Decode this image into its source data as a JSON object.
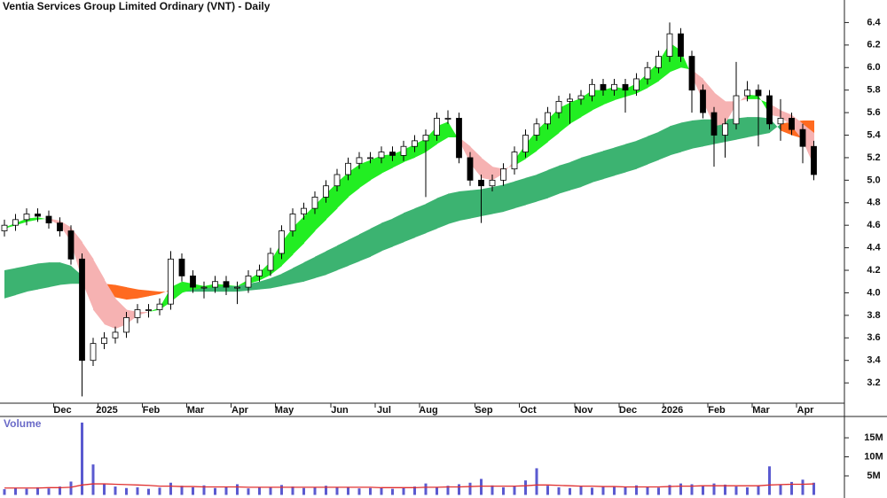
{
  "chart_data": [
    {
      "type": "candlestick",
      "title": "Ventia Services Group Limited Ordinary (VNT) - Daily",
      "categories": [
        null,
        null,
        null,
        null,
        null,
        "Dec",
        null,
        null,
        null,
        "2025",
        null,
        null,
        null,
        "Feb",
        null,
        null,
        null,
        "Mar",
        null,
        null,
        null,
        "Apr",
        null,
        null,
        null,
        "May",
        null,
        null,
        null,
        null,
        "Jun",
        null,
        null,
        null,
        "Jul",
        null,
        null,
        null,
        "Aug",
        null,
        null,
        null,
        null,
        "Sep",
        null,
        null,
        null,
        "Oct",
        null,
        null,
        null,
        null,
        "Nov",
        null,
        null,
        null,
        "Dec",
        null,
        null,
        null,
        "2026",
        null,
        null,
        null,
        "Feb",
        null,
        null,
        null,
        "Mar",
        null,
        null,
        null,
        "Apr",
        null
      ],
      "open": [
        4.55,
        4.6,
        4.65,
        4.7,
        4.68,
        4.62,
        4.55,
        4.3,
        3.4,
        3.55,
        3.6,
        3.65,
        3.78,
        3.85,
        3.85,
        3.9,
        4.3,
        4.15,
        4.05,
        4.05,
        4.1,
        4.05,
        4.05,
        4.15,
        4.2,
        4.35,
        4.55,
        4.7,
        4.75,
        4.85,
        4.95,
        5.05,
        5.15,
        5.2,
        5.2,
        5.25,
        5.22,
        5.3,
        5.35,
        5.4,
        5.55,
        5.55,
        5.2,
        5.0,
        4.95,
        5.0,
        5.1,
        5.25,
        5.4,
        5.5,
        5.6,
        5.7,
        5.72,
        5.75,
        5.85,
        5.8,
        5.85,
        5.8,
        5.9,
        6.0,
        6.1,
        6.3,
        6.1,
        5.8,
        5.6,
        5.4,
        5.5,
        5.75,
        5.8,
        5.75,
        5.5,
        5.55,
        5.45,
        5.3
      ],
      "high": [
        4.65,
        4.7,
        4.75,
        4.75,
        4.73,
        4.67,
        4.6,
        4.35,
        3.6,
        3.65,
        3.7,
        3.83,
        3.9,
        3.9,
        3.95,
        4.37,
        4.35,
        4.2,
        4.1,
        4.15,
        4.15,
        4.1,
        4.2,
        4.25,
        4.4,
        4.6,
        4.75,
        4.8,
        4.9,
        5.0,
        5.1,
        5.2,
        5.25,
        5.25,
        5.3,
        5.3,
        5.35,
        5.4,
        5.45,
        5.6,
        5.62,
        5.6,
        5.25,
        5.05,
        5.05,
        5.15,
        5.3,
        5.45,
        5.55,
        5.65,
        5.75,
        5.77,
        5.8,
        5.9,
        5.9,
        5.9,
        5.9,
        5.95,
        6.05,
        6.15,
        6.4,
        6.35,
        6.15,
        5.85,
        5.65,
        5.55,
        6.05,
        5.88,
        5.85,
        5.8,
        5.72,
        5.6,
        5.5,
        5.35
      ],
      "low": [
        4.5,
        4.55,
        4.6,
        4.63,
        4.57,
        4.5,
        4.25,
        3.08,
        3.35,
        3.5,
        3.55,
        3.6,
        3.73,
        3.78,
        3.8,
        3.85,
        4.1,
        4.0,
        3.95,
        4.0,
        3.98,
        3.9,
        4.0,
        4.1,
        4.15,
        4.3,
        4.5,
        4.65,
        4.7,
        4.8,
        4.9,
        5.0,
        5.1,
        5.15,
        5.15,
        5.17,
        5.17,
        5.25,
        4.85,
        5.35,
        5.5,
        5.15,
        4.95,
        4.62,
        4.9,
        4.95,
        5.05,
        5.2,
        5.35,
        5.45,
        5.55,
        5.5,
        5.67,
        5.7,
        5.75,
        5.75,
        5.6,
        5.75,
        5.85,
        5.95,
        6.05,
        6.05,
        5.6,
        5.55,
        5.12,
        5.2,
        5.45,
        5.7,
        5.3,
        5.45,
        5.35,
        5.4,
        5.15,
        5.0
      ],
      "close": [
        4.6,
        4.65,
        4.7,
        4.68,
        4.62,
        4.55,
        4.3,
        3.4,
        3.55,
        3.6,
        3.65,
        3.78,
        3.85,
        3.85,
        3.9,
        4.3,
        4.15,
        4.05,
        4.05,
        4.1,
        4.05,
        4.05,
        4.15,
        4.2,
        4.35,
        4.55,
        4.7,
        4.75,
        4.85,
        4.95,
        5.05,
        5.15,
        5.2,
        5.2,
        5.25,
        5.22,
        5.3,
        5.35,
        5.4,
        5.55,
        5.55,
        5.2,
        5.0,
        4.95,
        5.0,
        5.1,
        5.25,
        5.4,
        5.5,
        5.6,
        5.7,
        5.72,
        5.75,
        5.85,
        5.8,
        5.85,
        5.8,
        5.9,
        6.0,
        6.1,
        6.3,
        6.1,
        5.8,
        5.6,
        5.4,
        5.5,
        5.75,
        5.8,
        5.75,
        5.5,
        5.55,
        5.45,
        5.3,
        5.05
      ],
      "fast_ribbon": {
        "a": [
          4.58,
          4.62,
          4.66,
          4.67,
          4.65,
          4.6,
          4.45,
          4.1,
          3.85,
          3.72,
          3.68,
          3.72,
          3.8,
          3.83,
          3.87,
          4.05,
          4.1,
          4.08,
          4.06,
          4.08,
          4.07,
          4.06,
          4.12,
          4.18,
          4.28,
          4.45,
          4.58,
          4.68,
          4.78,
          4.88,
          4.98,
          5.07,
          5.14,
          5.18,
          5.22,
          5.23,
          5.27,
          5.32,
          5.37,
          5.48,
          5.52,
          5.35,
          5.15,
          5.02,
          5.0,
          5.06,
          5.18,
          5.32,
          5.44,
          5.54,
          5.64,
          5.69,
          5.73,
          5.8,
          5.8,
          5.83,
          5.81,
          5.86,
          5.95,
          6.05,
          6.22,
          6.15,
          5.92,
          5.7,
          5.48,
          5.5,
          5.68,
          5.76,
          5.75,
          5.58,
          5.56,
          5.48,
          5.35,
          5.12
        ],
        "b": [
          4.57,
          4.6,
          4.63,
          4.65,
          4.66,
          4.64,
          4.58,
          4.45,
          4.3,
          4.12,
          3.95,
          3.85,
          3.83,
          3.83,
          3.85,
          3.92,
          4.0,
          4.03,
          4.04,
          4.05,
          4.06,
          4.06,
          4.08,
          4.11,
          4.16,
          4.24,
          4.34,
          4.44,
          4.55,
          4.65,
          4.75,
          4.85,
          4.93,
          5.0,
          5.06,
          5.11,
          5.16,
          5.2,
          5.25,
          5.32,
          5.38,
          5.38,
          5.3,
          5.2,
          5.12,
          5.1,
          5.13,
          5.19,
          5.26,
          5.34,
          5.42,
          5.5,
          5.56,
          5.62,
          5.67,
          5.71,
          5.74,
          5.77,
          5.82,
          5.88,
          5.96,
          6.0,
          5.98,
          5.9,
          5.78,
          5.7,
          5.7,
          5.72,
          5.72,
          5.68,
          5.62,
          5.58,
          5.5,
          5.42
        ]
      },
      "slow_ribbon": {
        "a": [
          4.2,
          4.22,
          4.24,
          4.26,
          4.27,
          4.27,
          4.24,
          4.15,
          4.05,
          4.0,
          3.96,
          3.94,
          3.95,
          3.97,
          3.99,
          4.03,
          4.05,
          4.05,
          4.05,
          4.06,
          4.06,
          4.06,
          4.08,
          4.1,
          4.13,
          4.17,
          4.22,
          4.27,
          4.32,
          4.37,
          4.42,
          4.47,
          4.52,
          4.57,
          4.62,
          4.66,
          4.71,
          4.75,
          4.79,
          4.84,
          4.88,
          4.9,
          4.91,
          4.92,
          4.94,
          4.96,
          4.99,
          5.02,
          5.05,
          5.09,
          5.13,
          5.16,
          5.2,
          5.23,
          5.26,
          5.29,
          5.32,
          5.35,
          5.39,
          5.43,
          5.48,
          5.51,
          5.53,
          5.54,
          5.54,
          5.54,
          5.55,
          5.56,
          5.56,
          5.55,
          5.44,
          5.4,
          5.37,
          5.34
        ],
        "b": [
          3.95,
          3.98,
          4.01,
          4.03,
          4.05,
          4.07,
          4.08,
          4.08,
          4.08,
          4.08,
          4.07,
          4.05,
          4.03,
          4.02,
          4.01,
          4.01,
          4.01,
          4.01,
          4.01,
          4.01,
          4.01,
          4.01,
          4.02,
          4.03,
          4.04,
          4.06,
          4.08,
          4.1,
          4.13,
          4.16,
          4.2,
          4.24,
          4.28,
          4.32,
          4.37,
          4.41,
          4.45,
          4.49,
          4.53,
          4.57,
          4.61,
          4.64,
          4.66,
          4.68,
          4.7,
          4.72,
          4.75,
          4.78,
          4.81,
          4.84,
          4.88,
          4.91,
          4.94,
          4.98,
          5.01,
          5.04,
          5.07,
          5.1,
          5.14,
          5.18,
          5.22,
          5.25,
          5.28,
          5.3,
          5.32,
          5.34,
          5.36,
          5.38,
          5.4,
          5.42,
          5.5,
          5.52,
          5.53,
          5.53
        ]
      },
      "colors": {
        "fast_up": "#22ee22",
        "fast_down": "#f6b2b2",
        "slow_up": "#3cb371",
        "slow_down": "#ff6a20",
        "candle_up": "#ffffff",
        "candle_down": "#000000"
      },
      "ylim": [
        3.02,
        6.6
      ],
      "yticks": [
        3.2,
        3.4,
        3.6,
        3.8,
        {
          "value": 4,
          "label": "4.0"
        },
        4.2,
        4.4,
        4.6,
        4.8,
        {
          "value": 5,
          "label": "5.0"
        },
        5.2,
        5.4,
        5.6,
        5.8,
        {
          "value": 6,
          "label": "6.0"
        },
        6.2,
        6.4
      ]
    },
    {
      "type": "bar",
      "title": "Volume",
      "values": [
        1.5,
        1.8,
        1.6,
        2.0,
        1.7,
        2.2,
        3.5,
        19.0,
        8.0,
        3.0,
        2.2,
        1.8,
        2.0,
        1.6,
        1.9,
        3.2,
        2.4,
        2.0,
        2.5,
        1.8,
        2.1,
        2.8,
        1.7,
        1.9,
        2.0,
        2.6,
        2.2,
        1.8,
        2.0,
        2.4,
        1.9,
        2.1,
        1.7,
        1.8,
        2.0,
        1.6,
        1.9,
        2.2,
        3.0,
        2.0,
        2.4,
        2.8,
        3.2,
        4.2,
        2.5,
        2.0,
        2.2,
        3.8,
        7.0,
        2.4,
        2.0,
        1.8,
        2.2,
        1.9,
        2.1,
        2.3,
        2.0,
        2.5,
        2.2,
        1.9,
        2.6,
        3.0,
        2.8,
        2.4,
        3.0,
        2.7,
        2.2,
        2.0,
        2.4,
        7.5,
        2.6,
        3.4,
        4.0,
        3.2
      ],
      "average": [
        1.8,
        1.8,
        1.8,
        1.8,
        1.9,
        1.9,
        2.0,
        2.6,
        2.9,
        2.9,
        2.8,
        2.7,
        2.6,
        2.5,
        2.3,
        2.3,
        2.2,
        2.2,
        2.1,
        2.1,
        2.1,
        2.1,
        2.0,
        2.0,
        2.0,
        2.0,
        2.0,
        2.0,
        2.0,
        2.0,
        2.0,
        2.0,
        2.0,
        2.0,
        1.9,
        1.9,
        1.9,
        1.9,
        2.0,
        2.0,
        2.1,
        2.1,
        2.2,
        2.3,
        2.3,
        2.3,
        2.3,
        2.4,
        2.6,
        2.6,
        2.5,
        2.4,
        2.3,
        2.3,
        2.2,
        2.2,
        2.1,
        2.1,
        2.1,
        2.1,
        2.2,
        2.3,
        2.3,
        2.4,
        2.4,
        2.4,
        2.4,
        2.4,
        2.4,
        2.6,
        2.7,
        2.8,
        2.8,
        2.9
      ],
      "color": "#5a5ad0",
      "average_color": "#e03030",
      "ylim": [
        0,
        20.6
      ],
      "yticks": [
        {
          "value": 5,
          "label": "5M"
        },
        {
          "value": 10,
          "label": "10M"
        },
        {
          "value": 15,
          "label": "15M"
        }
      ]
    }
  ]
}
